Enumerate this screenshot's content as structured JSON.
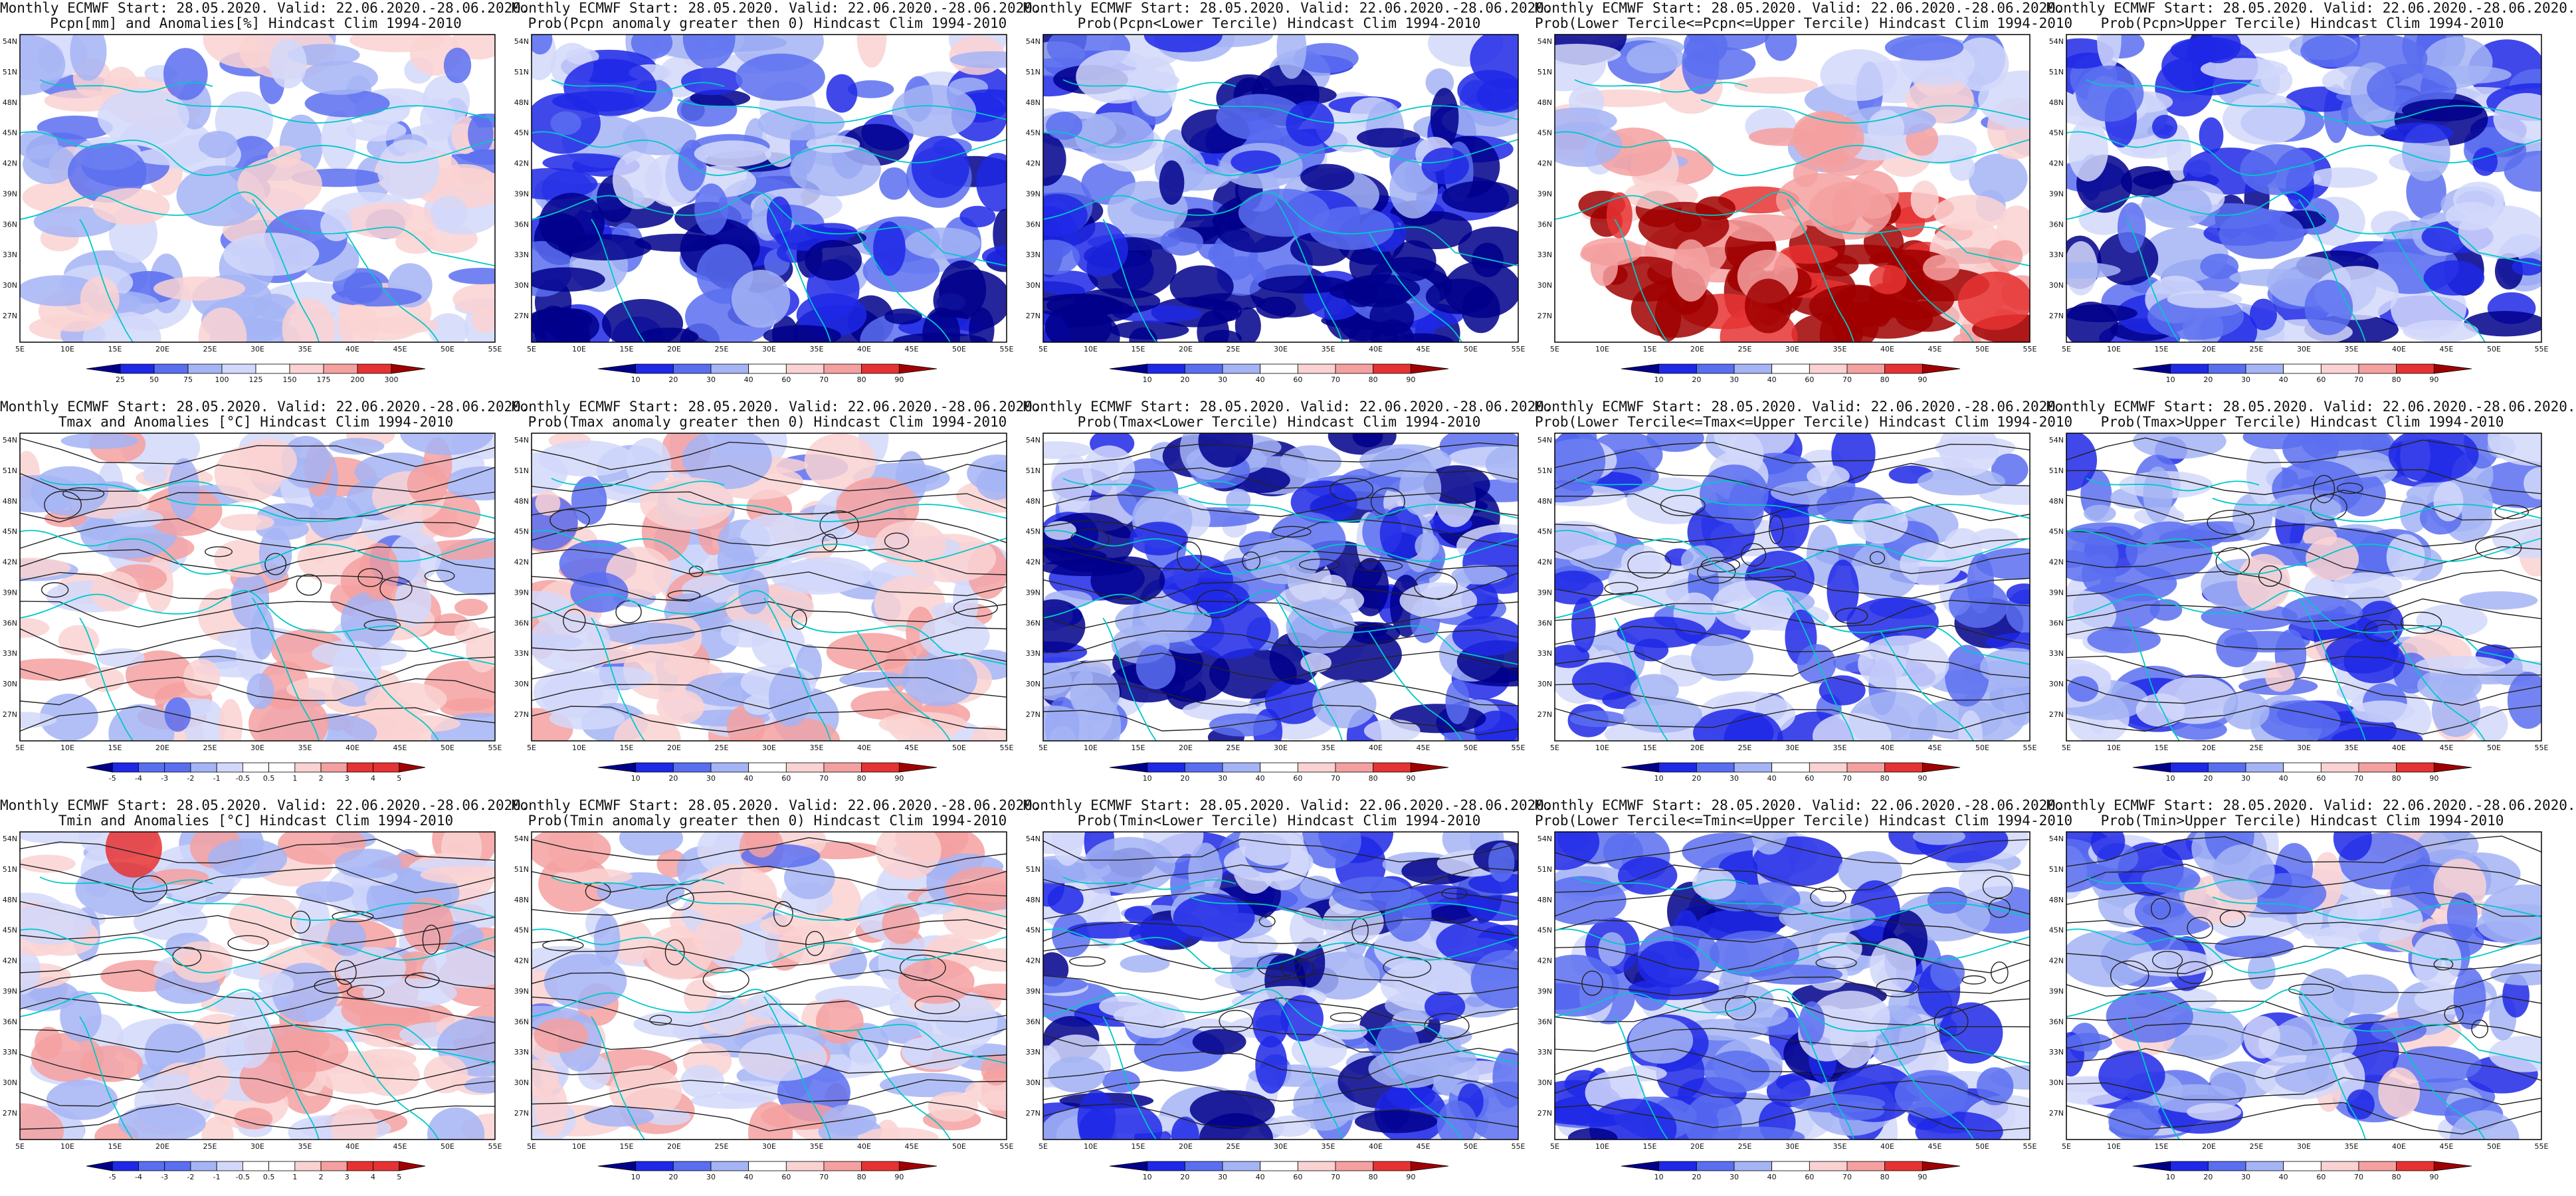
{
  "colors": {
    "deep_blue": "#00008b",
    "blue": "#1e28e6",
    "mid_blue": "#5a6ef0",
    "light_blue": "#a5b4f5",
    "pale_blue": "#d2d8fa",
    "white": "#ffffff",
    "pale_red": "#fad2d2",
    "light_red": "#f5a0a0",
    "red": "#e63232",
    "dark_red": "#a00000",
    "coast": "#00c8c8",
    "contour": "#222222"
  },
  "map": {
    "lon_labels": [
      "5E",
      "10E",
      "15E",
      "20E",
      "25E",
      "30E",
      "35E",
      "40E",
      "45E",
      "50E",
      "55E"
    ],
    "lat_labels": [
      "54N",
      "51N",
      "48N",
      "45N",
      "42N",
      "39N",
      "36N",
      "33N",
      "30N",
      "27N"
    ]
  },
  "colorbars": {
    "pcpn_anom": [
      "25",
      "50",
      "75",
      "100",
      "125",
      "150",
      "175",
      "200",
      "300"
    ],
    "prob": [
      "10",
      "20",
      "30",
      "40",
      "60",
      "70",
      "80",
      "90"
    ],
    "temp_anom": [
      "-5",
      "-4",
      "-3",
      "-2",
      "-1",
      "-0.5",
      "0.5",
      "1",
      "2",
      "3",
      "4",
      "5"
    ]
  },
  "panels": [
    {
      "title1": "Monthly ECMWF Start: 28.05.2020. Valid: 22.06.2020.-28.06.2020.",
      "title2": "Pcpn[mm] and Anomalies[%] Hindcast Clim 1994-2010",
      "bar": "pcpn_anom",
      "pal": "div",
      "bias": -0.1,
      "contours": false
    },
    {
      "title1": "Monthly ECMWF Start: 28.05.2020. Valid: 22.06.2020.-28.06.2020.",
      "title2": "Prob(Pcpn anomaly greater then 0) Hindcast Clim 1994-2010",
      "bar": "prob",
      "pal": "div",
      "bias": -0.55,
      "contours": false
    },
    {
      "title1": "Monthly ECMWF Start: 28.05.2020. Valid: 22.06.2020.-28.06.2020.",
      "title2": "Prob(Pcpn<Lower Tercile) Hindcast Clim 1994-2010",
      "bar": "prob",
      "pal": "div",
      "bias": -0.75,
      "contours": false
    },
    {
      "title1": "Monthly ECMWF Start: 28.05.2020. Valid: 22.06.2020.-28.06.2020.",
      "title2": "Prob(Lower Tercile<=Pcpn<=Upper Tercile) Hindcast Clim 1994-2010",
      "bar": "prob",
      "pal": "div",
      "bias": 0.1,
      "contours": false
    },
    {
      "title1": "Monthly ECMWF Start: 28.05.2020. Valid: 22.06.2020.-28.06.2020.",
      "title2": "Prob(Pcpn>Upper Tercile) Hindcast Clim 1994-2010",
      "bar": "prob",
      "pal": "div",
      "bias": -0.5,
      "contours": false
    },
    {
      "title1": "Monthly ECMWF Start: 28.05.2020. Valid: 22.06.2020.-28.06.2020.",
      "title2": "Tmax and Anomalies [°C] Hindcast Clim 1994-2010",
      "bar": "temp_anom",
      "pal": "div",
      "bias": 0.1,
      "contours": true
    },
    {
      "title1": "Monthly ECMWF Start: 28.05.2020. Valid: 22.06.2020.-28.06.2020.",
      "title2": "Prob(Tmax anomaly greater then 0) Hindcast Clim 1994-2010",
      "bar": "prob",
      "pal": "div",
      "bias": 0.08,
      "contours": true
    },
    {
      "title1": "Monthly ECMWF Start: 28.05.2020. Valid: 22.06.2020.-28.06.2020.",
      "title2": "Prob(Tmax<Lower Tercile) Hindcast Clim 1994-2010",
      "bar": "prob",
      "pal": "div",
      "bias": -0.55,
      "contours": true
    },
    {
      "title1": "Monthly ECMWF Start: 28.05.2020. Valid: 22.06.2020.-28.06.2020.",
      "title2": "Prob(Lower Tercile<=Tmax<=Upper Tercile) Hindcast Clim 1994-2010",
      "bar": "prob",
      "pal": "div",
      "bias": -0.35,
      "contours": true
    },
    {
      "title1": "Monthly ECMWF Start: 28.05.2020. Valid: 22.06.2020.-28.06.2020.",
      "title2": "Prob(Tmax>Upper Tercile) Hindcast Clim 1994-2010",
      "bar": "prob",
      "pal": "div",
      "bias": -0.3,
      "contours": true
    },
    {
      "title1": "Monthly ECMWF Start: 28.05.2020. Valid: 22.06.2020.-28.06.2020.",
      "title2": "Tmin and Anomalies [°C] Hindcast Clim 1994-2010",
      "bar": "temp_anom",
      "pal": "div",
      "bias": 0.12,
      "contours": true
    },
    {
      "title1": "Monthly ECMWF Start: 28.05.2020. Valid: 22.06.2020.-28.06.2020.",
      "title2": "Prob(Tmin anomaly greater then 0) Hindcast Clim 1994-2010",
      "bar": "prob",
      "pal": "div",
      "bias": 0.08,
      "contours": true
    },
    {
      "title1": "Monthly ECMWF Start: 28.05.2020. Valid: 22.06.2020.-28.06.2020.",
      "title2": "Prob(Tmin<Lower Tercile) Hindcast Clim 1994-2010",
      "bar": "prob",
      "pal": "div",
      "bias": -0.5,
      "contours": true
    },
    {
      "title1": "Monthly ECMWF Start: 28.05.2020. Valid: 22.06.2020.-28.06.2020.",
      "title2": "Prob(Lower Tercile<=Tmin<=Upper Tercile) Hindcast Clim 1994-2010",
      "bar": "prob",
      "pal": "div",
      "bias": -0.4,
      "contours": true
    },
    {
      "title1": "Monthly ECMWF Start: 28.05.2020. Valid: 22.06.2020.-28.06.2020.",
      "title2": "Prob(Tmin>Upper Tercile) Hindcast Clim 1994-2010",
      "bar": "prob",
      "pal": "div",
      "bias": -0.25,
      "contours": true
    }
  ]
}
